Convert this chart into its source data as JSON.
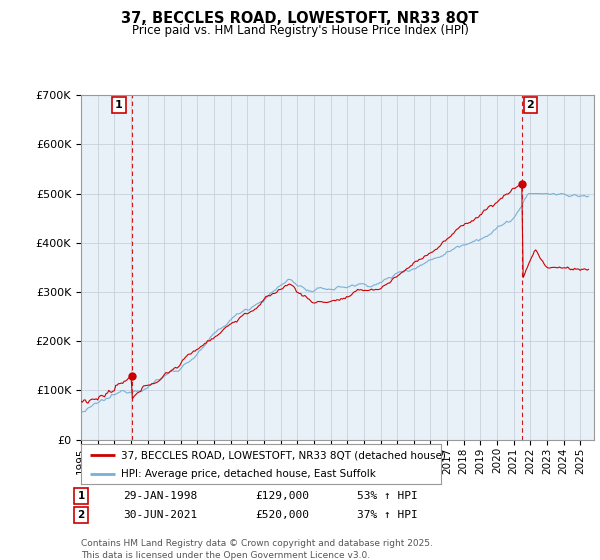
{
  "title": "37, BECCLES ROAD, LOWESTOFT, NR33 8QT",
  "subtitle": "Price paid vs. HM Land Registry's House Price Index (HPI)",
  "ylim": [
    0,
    700000
  ],
  "xlim_start": 1995.0,
  "xlim_end": 2025.83,
  "red_line_color": "#cc0000",
  "blue_line_color": "#7ab0d4",
  "plot_bg_color": "#e8f0f8",
  "marker1_date": 1998.08,
  "marker1_price": 129000,
  "marker2_date": 2021.5,
  "marker2_price": 520000,
  "legend_line1": "37, BECCLES ROAD, LOWESTOFT, NR33 8QT (detached house)",
  "legend_line2": "HPI: Average price, detached house, East Suffolk",
  "footer": "Contains HM Land Registry data © Crown copyright and database right 2025.\nThis data is licensed under the Open Government Licence v3.0.",
  "grid_color": "#c0ccd8",
  "vline_color": "#cc0000"
}
